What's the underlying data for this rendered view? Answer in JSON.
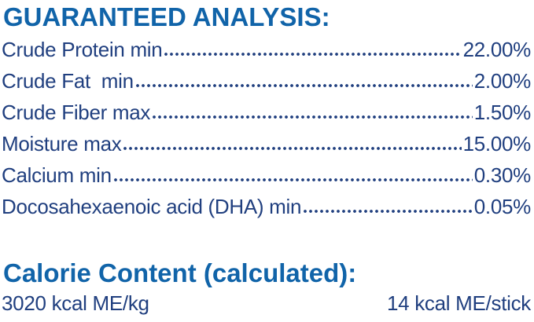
{
  "colors": {
    "heading_blue": "#1164a9",
    "body_navy": "#203f7f",
    "page_bg": "#ffffff"
  },
  "guaranteed_analysis": {
    "title": "GUARANTEED ANALYSIS:",
    "rows": [
      {
        "label": "Crude Protein min",
        "value": "22.00%"
      },
      {
        "label": "Crude Fat  min",
        "value": "2.00%"
      },
      {
        "label": "Crude Fiber max",
        "value": "1.50%"
      },
      {
        "label": "Moisture max",
        "value": "15.00%"
      },
      {
        "label": "Calcium min",
        "value": "0.30%"
      },
      {
        "label": "Docosahexaenoic acid (DHA) min",
        "value": "0.05%"
      }
    ]
  },
  "calorie_content": {
    "title": "Calorie Content (calculated):",
    "per_kg": "3020 kcal ME/kg",
    "per_stick": "14 kcal ME/stick"
  }
}
